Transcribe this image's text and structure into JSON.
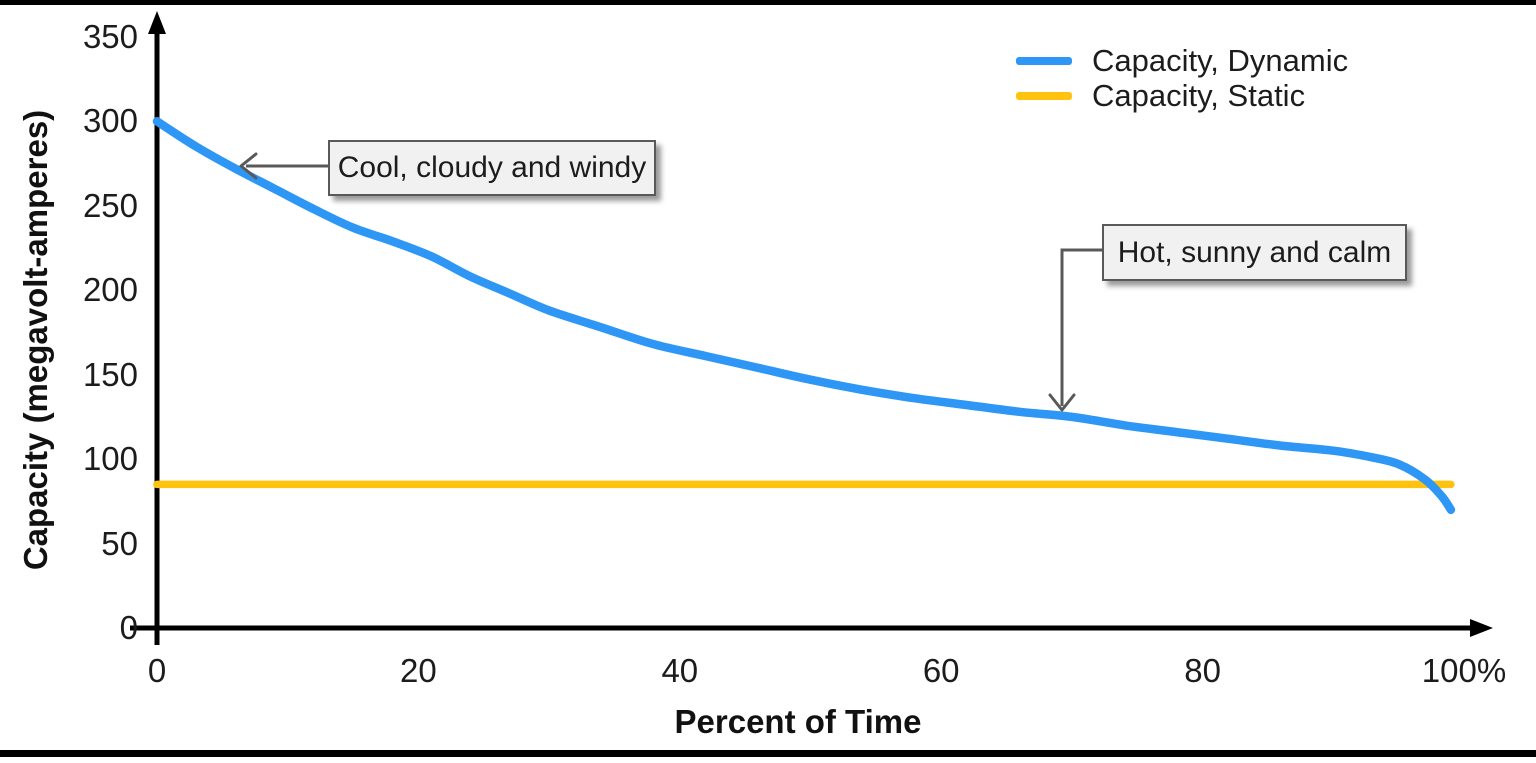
{
  "chart_data": {
    "type": "line",
    "title": "",
    "xlabel": "Percent of Time",
    "ylabel": "Capacity (megavolt-amperes)",
    "xlim": [
      0,
      100
    ],
    "ylim": [
      0,
      350
    ],
    "grid": false,
    "legend_position": "top-right",
    "x_ticks": [
      {
        "value": 0,
        "label": "0"
      },
      {
        "value": 20,
        "label": "20"
      },
      {
        "value": 40,
        "label": "40"
      },
      {
        "value": 60,
        "label": "60"
      },
      {
        "value": 80,
        "label": "80"
      },
      {
        "value": 100,
        "label": "100%"
      }
    ],
    "y_ticks": [
      {
        "value": 0,
        "label": "0"
      },
      {
        "value": 50,
        "label": "50"
      },
      {
        "value": 100,
        "label": "100"
      },
      {
        "value": 150,
        "label": "150"
      },
      {
        "value": 200,
        "label": "200"
      },
      {
        "value": 250,
        "label": "250"
      },
      {
        "value": 300,
        "label": "300"
      },
      {
        "value": 350,
        "label": "350"
      }
    ],
    "series": [
      {
        "name": "Capacity, Dynamic",
        "color": "#2E96F5",
        "points": [
          [
            0,
            300
          ],
          [
            3,
            285
          ],
          [
            6,
            272
          ],
          [
            9,
            260
          ],
          [
            12,
            248
          ],
          [
            15,
            237
          ],
          [
            18,
            229
          ],
          [
            21,
            220
          ],
          [
            24,
            208
          ],
          [
            27,
            198
          ],
          [
            30,
            188
          ],
          [
            34,
            178
          ],
          [
            38,
            168
          ],
          [
            42,
            161
          ],
          [
            46,
            154
          ],
          [
            50,
            147
          ],
          [
            54,
            141
          ],
          [
            58,
            136
          ],
          [
            62,
            132
          ],
          [
            66,
            128
          ],
          [
            70,
            125
          ],
          [
            74,
            120
          ],
          [
            78,
            116
          ],
          [
            82,
            112
          ],
          [
            86,
            108
          ],
          [
            90,
            105
          ],
          [
            93,
            101
          ],
          [
            95,
            97
          ],
          [
            97,
            88
          ],
          [
            98.3,
            78
          ],
          [
            99,
            70
          ]
        ]
      },
      {
        "name": "Capacity, Static",
        "color": "#FFC20E",
        "points": [
          [
            0,
            85
          ],
          [
            99,
            85
          ]
        ]
      }
    ],
    "annotations": [
      {
        "text": "Cool, cloudy and windy",
        "points_to_x": 6,
        "points_to_y": 272
      },
      {
        "text": "Hot, sunny and calm",
        "points_to_x": 69,
        "points_to_y": 126
      }
    ]
  },
  "colors": {
    "axis": "#000000",
    "tick_text": "#1c1c1c",
    "annotation_arrow": "#595959",
    "callout_fill": "#f1f1f1",
    "callout_border": "#595959"
  }
}
